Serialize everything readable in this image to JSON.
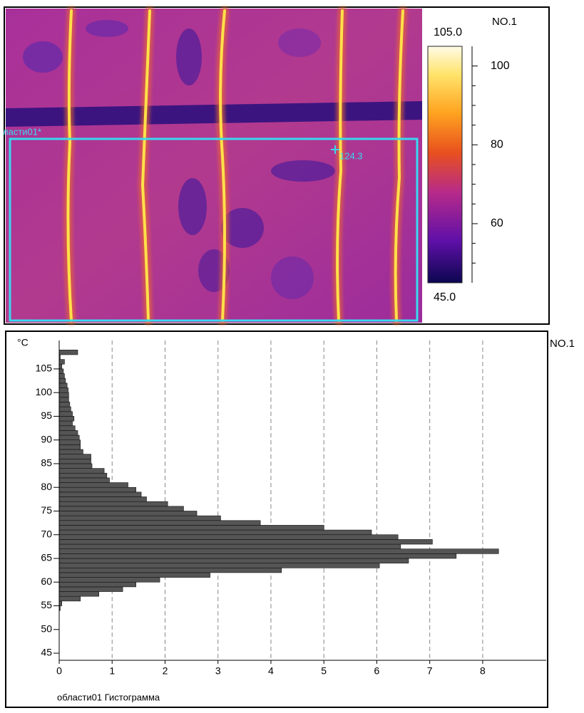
{
  "thermal_view": {
    "label": "NO.1",
    "region_label": "ласти01*",
    "spot_value": 124.3,
    "scale": {
      "range": [
        {
          "value": 45,
          "label": "45.0"
        },
        {
          "value": 105,
          "label": "105.0"
        }
      ],
      "ticks": [
        60,
        80,
        100
      ],
      "minor_ticks": [
        50,
        55,
        65,
        70,
        75,
        85,
        90,
        95
      ]
    }
  },
  "chart_data": {
    "type": "histogram",
    "orientation": "horizontal",
    "y_unit_label": "°C",
    "series_label": "NO.1",
    "caption": "области01  Гистограмма",
    "bins": [
      54,
      55,
      56,
      57,
      58,
      59,
      60,
      61,
      62,
      63,
      64,
      65,
      66,
      67,
      68,
      69,
      70,
      71,
      72,
      73,
      74,
      75,
      76,
      77,
      78,
      79,
      80,
      81,
      82,
      83,
      84,
      85,
      86,
      87,
      88,
      89,
      90,
      91,
      92,
      93,
      94,
      95,
      96,
      97,
      98,
      99,
      100,
      101,
      102,
      103,
      104,
      105,
      106,
      107,
      108,
      109
    ],
    "counts": [
      0.02,
      0.05,
      0.4,
      0.75,
      1.2,
      1.45,
      1.9,
      2.85,
      4.2,
      6.05,
      6.6,
      7.5,
      8.3,
      6.45,
      7.05,
      6.4,
      5.9,
      5.0,
      3.8,
      3.05,
      2.6,
      2.35,
      2.05,
      1.65,
      1.55,
      1.45,
      1.3,
      0.95,
      0.9,
      0.85,
      0.62,
      0.6,
      0.6,
      0.45,
      0.4,
      0.4,
      0.38,
      0.35,
      0.3,
      0.25,
      0.28,
      0.25,
      0.22,
      0.2,
      0.18,
      0.18,
      0.17,
      0.15,
      0.12,
      0.1,
      0.08,
      0.05,
      0.1,
      0.02,
      0.35
    ],
    "color": "#555555",
    "xlim": [
      0,
      9.2
    ],
    "xticks": [
      0,
      1,
      2,
      3,
      4,
      5,
      6,
      7,
      8
    ],
    "ylim": [
      43.5,
      111
    ],
    "yticks": [
      45,
      50,
      55,
      60,
      65,
      70,
      75,
      80,
      85,
      90,
      95,
      100,
      105
    ],
    "grid": true
  }
}
